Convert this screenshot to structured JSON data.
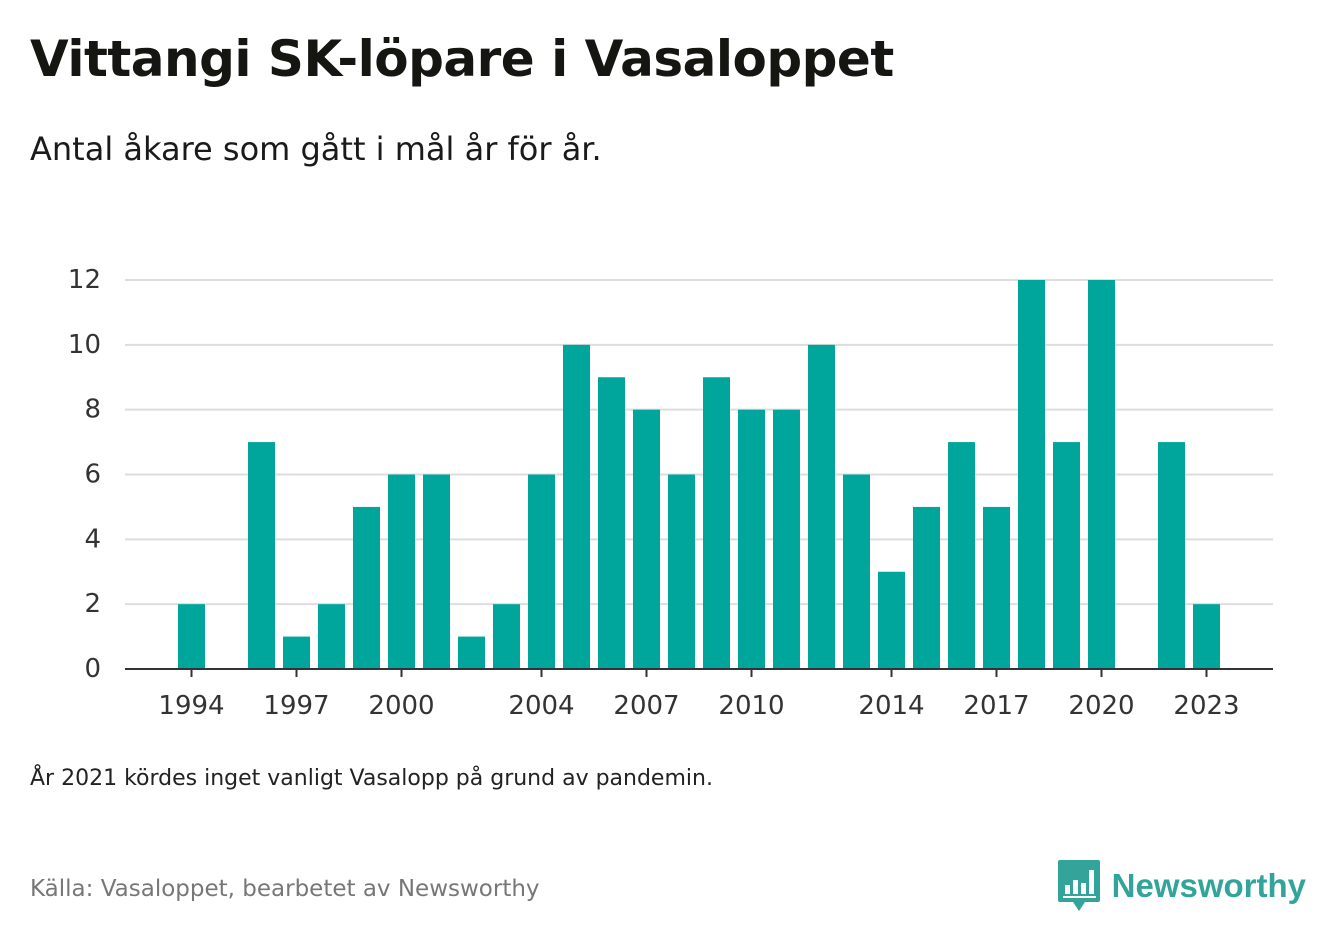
{
  "header": {
    "title": "Vittangi SK-löpare i Vasaloppet",
    "subtitle": "Antal åkare som gått i mål år för år."
  },
  "footer": {
    "note": "År 2021 kördes inget vanligt Vasalopp på grund av pandemin.",
    "source": "Källa: Vasaloppet, bearbetet av Newsworthy",
    "brand": "Newsworthy"
  },
  "colors": {
    "bar": "#00a59b",
    "brand": "#33a49a",
    "grid": "#dddddd",
    "axis": "#333333"
  },
  "brand_icon": "newsworthy-bar-chart-logo-icon",
  "chart_data": {
    "type": "bar",
    "categories": [
      1994,
      1995,
      1996,
      1997,
      1998,
      1999,
      2000,
      2001,
      2002,
      2003,
      2004,
      2005,
      2006,
      2007,
      2008,
      2009,
      2010,
      2011,
      2012,
      2013,
      2014,
      2015,
      2016,
      2017,
      2018,
      2019,
      2020,
      2021,
      2022,
      2023
    ],
    "values": [
      2,
      0,
      7,
      1,
      2,
      5,
      6,
      6,
      1,
      2,
      6,
      10,
      9,
      8,
      6,
      9,
      8,
      8,
      10,
      6,
      3,
      5,
      7,
      5,
      12,
      7,
      12,
      0,
      7,
      2
    ],
    "x_tick_labels": [
      "1994",
      "1997",
      "2000",
      "2004",
      "2007",
      "2010",
      "2014",
      "2017",
      "2020",
      "2023"
    ],
    "y_ticks": [
      0,
      2,
      4,
      6,
      8,
      10,
      12
    ],
    "ylim": [
      0,
      12
    ],
    "grid": true,
    "legend": "none"
  }
}
